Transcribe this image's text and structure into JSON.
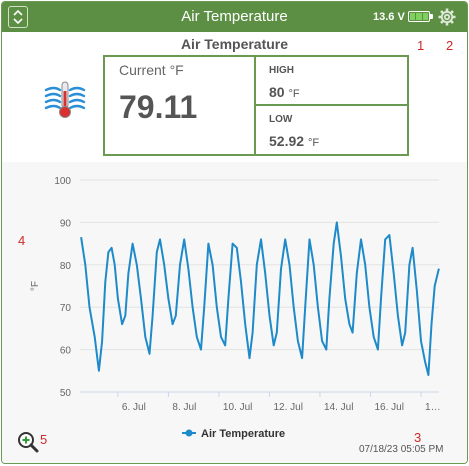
{
  "widget": {
    "title": "Air Temperature",
    "voltage": "13.6 V",
    "icons": {
      "collapse": "chevron-up-down-icon",
      "battery": "battery-full-icon",
      "settings": "gear-icon",
      "sensor": "thermometer-wind-icon",
      "zoom": "zoom-in-icon"
    },
    "colors": {
      "header": "#5c8f44",
      "border": "#6a9a52",
      "series": "#1f8ac9",
      "annotation": "#cc2a2a"
    }
  },
  "annotations": [
    "1",
    "2",
    "3",
    "4",
    "5"
  ],
  "readings": {
    "subtitle": "Air Temperature",
    "current_label": "Current",
    "unit": "°F",
    "current_value": "79.11",
    "high_label": "HIGH",
    "high_value": "80",
    "low_label": "LOW",
    "low_value": "52.92"
  },
  "timestamp": "07/18/23 05:05 PM",
  "chart_data": {
    "type": "line",
    "ylabel": "°F",
    "ylim": [
      50,
      100
    ],
    "yticks": [
      50,
      60,
      70,
      80,
      90,
      100
    ],
    "x_tick_labels": [
      "6. Jul",
      "8. Jul",
      "10. Jul",
      "12. Jul",
      "14. Jul",
      "16. Jul",
      "1…"
    ],
    "x_range": [
      "2023-07-04 12:00",
      "2023-07-18 17:05"
    ],
    "grid": true,
    "legend": "bottom-center",
    "series": [
      {
        "name": "Air Temperature",
        "color": "#1f8ac9",
        "points": [
          [
            "2023-07-04 13:00",
            86.5
          ],
          [
            "2023-07-04 17:00",
            80
          ],
          [
            "2023-07-04 21:00",
            70
          ],
          [
            "2023-07-05 02:00",
            63
          ],
          [
            "2023-07-05 06:00",
            55
          ],
          [
            "2023-07-05 09:00",
            62
          ],
          [
            "2023-07-05 12:00",
            76
          ],
          [
            "2023-07-05 15:00",
            83
          ],
          [
            "2023-07-05 18:00",
            84
          ],
          [
            "2023-07-05 21:00",
            80
          ],
          [
            "2023-07-06 00:00",
            72
          ],
          [
            "2023-07-06 04:00",
            66
          ],
          [
            "2023-07-06 07:00",
            68
          ],
          [
            "2023-07-06 10:00",
            78
          ],
          [
            "2023-07-06 14:00",
            85
          ],
          [
            "2023-07-06 18:00",
            80
          ],
          [
            "2023-07-06 22:00",
            72
          ],
          [
            "2023-07-07 02:00",
            63
          ],
          [
            "2023-07-07 06:00",
            59
          ],
          [
            "2023-07-07 09:00",
            68
          ],
          [
            "2023-07-07 13:00",
            83
          ],
          [
            "2023-07-07 16:00",
            86
          ],
          [
            "2023-07-07 20:00",
            80
          ],
          [
            "2023-07-08 00:00",
            72
          ],
          [
            "2023-07-08 04:00",
            66
          ],
          [
            "2023-07-08 07:00",
            68
          ],
          [
            "2023-07-08 11:00",
            80
          ],
          [
            "2023-07-08 15:00",
            86
          ],
          [
            "2023-07-08 19:00",
            79
          ],
          [
            "2023-07-08 23:00",
            70
          ],
          [
            "2023-07-09 03:00",
            63
          ],
          [
            "2023-07-09 07:00",
            60
          ],
          [
            "2023-07-09 10:00",
            70
          ],
          [
            "2023-07-09 14:00",
            85
          ],
          [
            "2023-07-09 18:00",
            80
          ],
          [
            "2023-07-09 22:00",
            70
          ],
          [
            "2023-07-10 02:00",
            63
          ],
          [
            "2023-07-10 06:00",
            61
          ],
          [
            "2023-07-10 09:00",
            72
          ],
          [
            "2023-07-10 13:00",
            85
          ],
          [
            "2023-07-10 17:00",
            84
          ],
          [
            "2023-07-10 21:00",
            76
          ],
          [
            "2023-07-11 01:00",
            66
          ],
          [
            "2023-07-11 05:00",
            58
          ],
          [
            "2023-07-11 08:00",
            64
          ],
          [
            "2023-07-11 12:00",
            80
          ],
          [
            "2023-07-11 16:00",
            86
          ],
          [
            "2023-07-11 20:00",
            78
          ],
          [
            "2023-07-12 00:00",
            68
          ],
          [
            "2023-07-12 04:00",
            61
          ],
          [
            "2023-07-12 07:00",
            64
          ],
          [
            "2023-07-12 11:00",
            79
          ],
          [
            "2023-07-12 15:00",
            86
          ],
          [
            "2023-07-12 19:00",
            80
          ],
          [
            "2023-07-12 23:00",
            70
          ],
          [
            "2023-07-13 03:00",
            62
          ],
          [
            "2023-07-13 07:00",
            58
          ],
          [
            "2023-07-13 10:00",
            70
          ],
          [
            "2023-07-13 14:00",
            86
          ],
          [
            "2023-07-13 18:00",
            80
          ],
          [
            "2023-07-13 22:00",
            70
          ],
          [
            "2023-07-14 02:00",
            62
          ],
          [
            "2023-07-14 06:00",
            60
          ],
          [
            "2023-07-14 09:00",
            72
          ],
          [
            "2023-07-14 13:00",
            85
          ],
          [
            "2023-07-14 16:00",
            90
          ],
          [
            "2023-07-14 20:00",
            82
          ],
          [
            "2023-07-15 00:00",
            72
          ],
          [
            "2023-07-15 04:00",
            66
          ],
          [
            "2023-07-15 07:00",
            64
          ],
          [
            "2023-07-15 11:00",
            78
          ],
          [
            "2023-07-15 15:00",
            86
          ],
          [
            "2023-07-15 19:00",
            80
          ],
          [
            "2023-07-15 23:00",
            70
          ],
          [
            "2023-07-16 03:00",
            63
          ],
          [
            "2023-07-16 07:00",
            60
          ],
          [
            "2023-07-16 10:00",
            72
          ],
          [
            "2023-07-16 14:00",
            86
          ],
          [
            "2023-07-16 18:00",
            87
          ],
          [
            "2023-07-16 22:00",
            78
          ],
          [
            "2023-07-17 02:00",
            68
          ],
          [
            "2023-07-17 06:00",
            61
          ],
          [
            "2023-07-17 09:00",
            64
          ],
          [
            "2023-07-17 13:00",
            80
          ],
          [
            "2023-07-17 16:00",
            84
          ],
          [
            "2023-07-17 20:00",
            74
          ],
          [
            "2023-07-18 00:00",
            62
          ],
          [
            "2023-07-18 04:00",
            57
          ],
          [
            "2023-07-18 07:00",
            54
          ],
          [
            "2023-07-18 10:00",
            66
          ],
          [
            "2023-07-18 13:00",
            75
          ],
          [
            "2023-07-18 17:00",
            79.1
          ]
        ]
      }
    ]
  }
}
